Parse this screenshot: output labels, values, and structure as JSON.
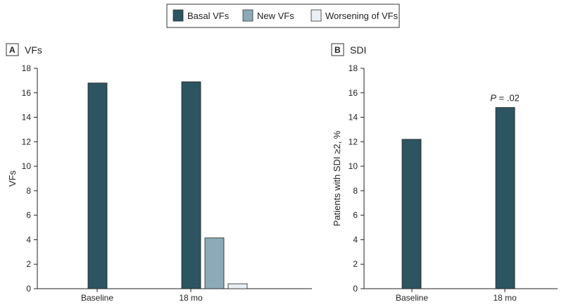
{
  "legend": {
    "items": [
      {
        "label": "Basal VFs",
        "color": "#2d5461"
      },
      {
        "label": "New VFs",
        "color": "#8aabb7"
      },
      {
        "label": "Worsening of VFs",
        "color": "#e9eff3"
      }
    ]
  },
  "panel_a": {
    "letter": "A",
    "title": "VFs"
  },
  "panel_b": {
    "letter": "B",
    "title": "SDI"
  },
  "chart_data": [
    {
      "type": "bar",
      "title": "VFs",
      "categories": [
        "Baseline",
        "18 mo"
      ],
      "series": [
        {
          "name": "Basal VFs",
          "values": [
            16.8,
            16.9
          ]
        },
        {
          "name": "New VFs",
          "values": [
            null,
            4.15
          ]
        },
        {
          "name": "Worsening of VFs",
          "values": [
            null,
            0.4
          ]
        }
      ],
      "ylabel": "VFs",
      "ylim": [
        0,
        18
      ],
      "yticks": [
        0,
        2,
        4,
        6,
        8,
        10,
        12,
        14,
        16,
        18
      ],
      "grid": false
    },
    {
      "type": "bar",
      "title": "SDI",
      "categories": [
        "Baseline",
        "18 mo"
      ],
      "values": [
        12.2,
        14.8
      ],
      "ylabel": "Patients with SDI ≥2, %",
      "ylim": [
        0,
        18
      ],
      "yticks": [
        0,
        2,
        4,
        6,
        8,
        10,
        12,
        14,
        16,
        18
      ],
      "grid": false,
      "annotations": [
        {
          "category": "18 mo",
          "p_label": "P",
          "text": " = .02"
        }
      ]
    }
  ]
}
